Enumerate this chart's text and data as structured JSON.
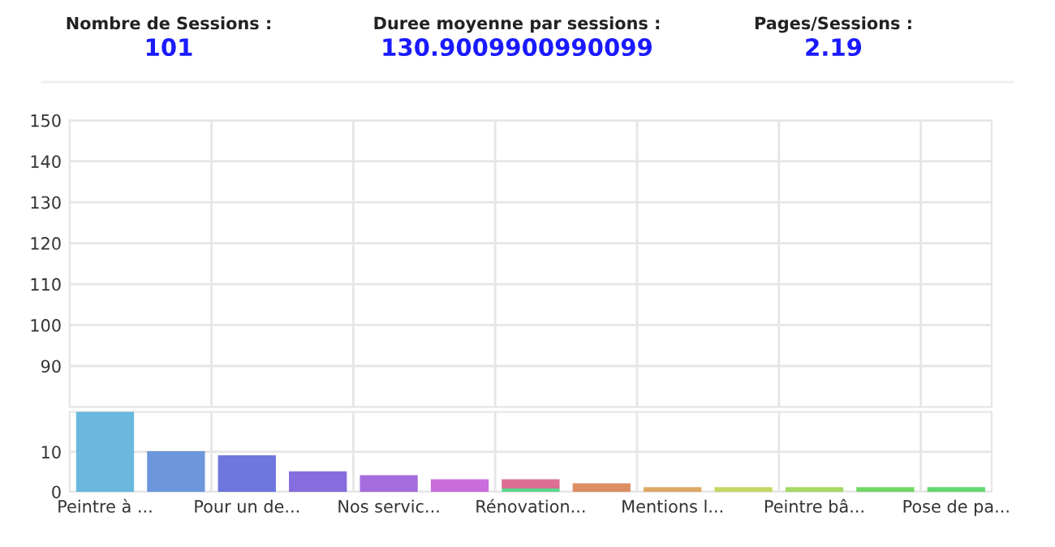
{
  "chart_data": [
    {
      "type": "other",
      "annotations": [
        "Nombre de Sessions :",
        "101",
        "Duree moyenne par sessions :",
        "130.9009900990099",
        "Pages/Sessions :",
        "2.19"
      ]
    },
    {
      "type": "bar",
      "tick_labels": "y",
      "grid": true,
      "ylim": [
        80,
        150
      ],
      "yticks": [
        90,
        100,
        110,
        120,
        130,
        140,
        150
      ],
      "categories": [
        null,
        null,
        null,
        null,
        null,
        null,
        null,
        null,
        null,
        null,
        null,
        null,
        null
      ],
      "series": [
        {
          "values": [
            null,
            null,
            null,
            null,
            null,
            null,
            null,
            null,
            null,
            null,
            null,
            null,
            null
          ],
          "color": "#63b5dc"
        }
      ]
    },
    {
      "type": "bar",
      "stacked": true,
      "grid": true,
      "ylim": [
        0,
        20
      ],
      "yticks": [
        0,
        10
      ],
      "categories": [
        "Peintre à ...",
        null,
        "Pour un de...",
        null,
        "Nos servic...",
        null,
        "Rénovation...",
        null,
        "Mentions l...",
        null,
        "Peintre bâ...",
        null,
        "Pose de pa..."
      ],
      "series": [
        {
          "values": [
            null,
            null,
            null,
            null,
            null,
            null,
            1,
            null,
            null,
            null,
            null,
            null,
            null
          ],
          "color": "#55d68a"
        },
        {
          "values": [
            20,
            10,
            9,
            5,
            4,
            3,
            2,
            2,
            1,
            1,
            1,
            1,
            1
          ],
          "colors": [
            "#63b5dc",
            "#6592dc",
            "#6670dc",
            "#7f66dc",
            "#a066dc",
            "#c766dc",
            "#dc6690",
            "#dc8a5c",
            "#dca45c",
            "#c2d65c",
            "#a0d65c",
            "#6ad65c",
            "#5cd66a"
          ]
        }
      ]
    }
  ]
}
